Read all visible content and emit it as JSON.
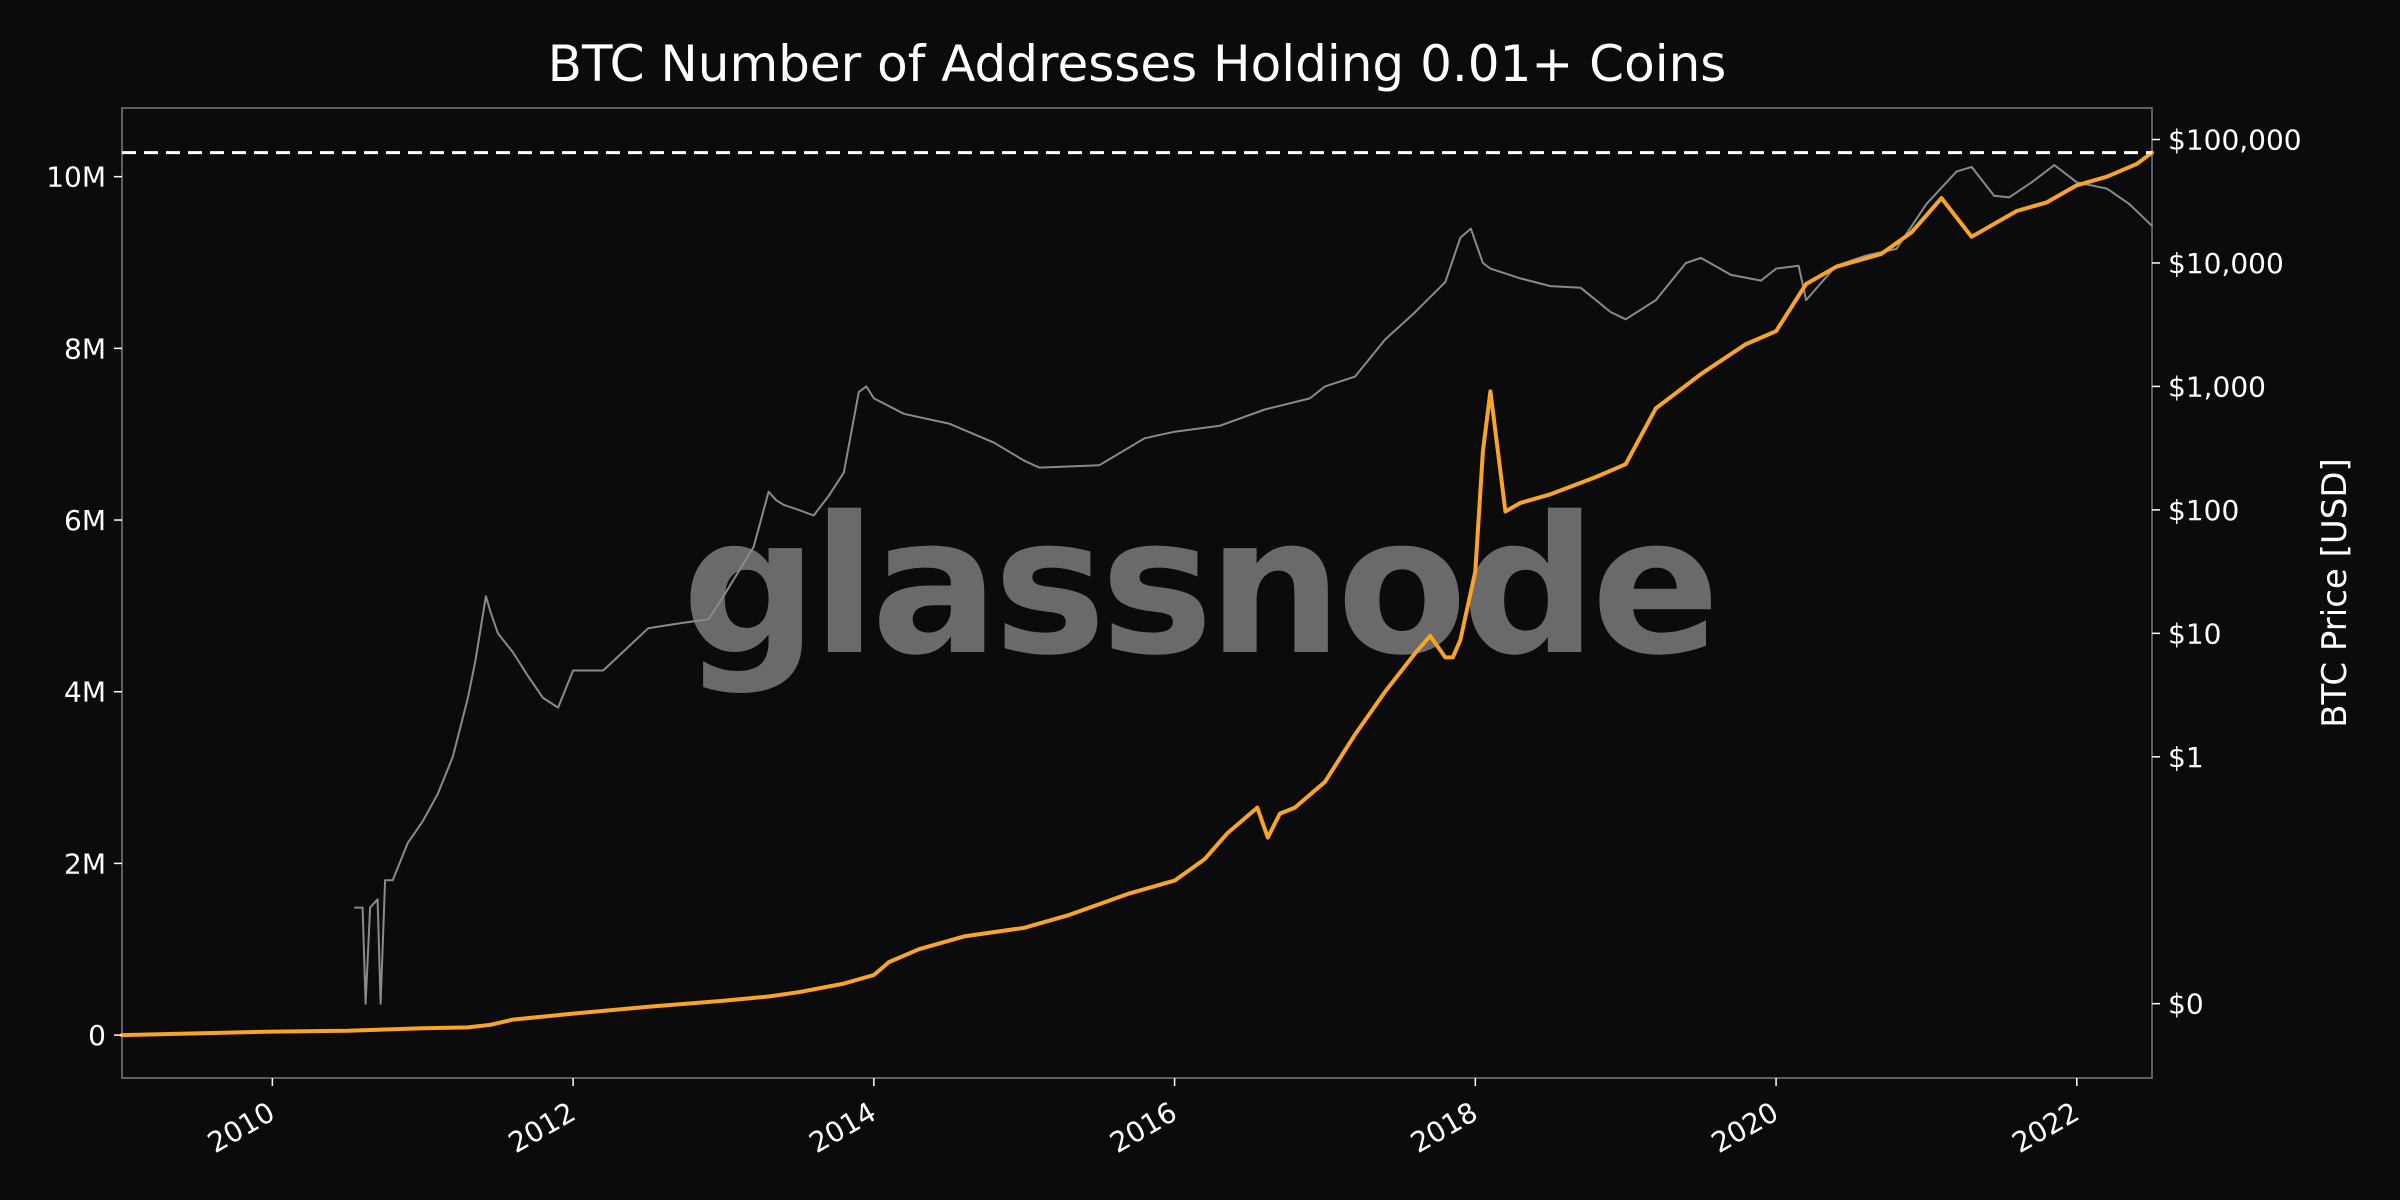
{
  "chart_data": {
    "type": "line",
    "title": "BTC Number of Addresses Holding 0.01+ Coins",
    "watermark": "glassnode",
    "xlabel": "",
    "ylabel_left": "",
    "ylabel_right": "BTC Price [USD]",
    "x_range": [
      2009.0,
      2022.5
    ],
    "x_ticks": [
      2010,
      2012,
      2014,
      2016,
      2018,
      2020,
      2022
    ],
    "x_tick_labels": [
      "2010",
      "2012",
      "2014",
      "2016",
      "2018",
      "2020",
      "2022"
    ],
    "y_left_range": [
      -500000,
      10800000
    ],
    "y_left_ticks": [
      0,
      2000000,
      4000000,
      6000000,
      8000000,
      10000000
    ],
    "y_left_tick_labels": [
      "0",
      "2M",
      "4M",
      "6M",
      "8M",
      "10M"
    ],
    "y_right_scale": "log",
    "y_right_range": [
      0.0025,
      180000
    ],
    "y_right_ticks": [
      0.01,
      1,
      10,
      100,
      1000,
      10000,
      100000
    ],
    "y_right_tick_labels": [
      "$0",
      "$1",
      "$10",
      "$100",
      "$1,000",
      "$10,000",
      "$100,000"
    ],
    "reference_line": {
      "axis": "left",
      "value": 10280000,
      "style": "dashed",
      "color": "#ffffff"
    },
    "grid": false,
    "series": [
      {
        "axis": "left",
        "color": "#f7a428",
        "x": [
          2009.0,
          2010.0,
          2010.5,
          2011.0,
          2011.3,
          2011.45,
          2011.6,
          2012.0,
          2012.5,
          2013.0,
          2013.3,
          2013.5,
          2013.8,
          2014.0,
          2014.1,
          2014.3,
          2014.6,
          2015.0,
          2015.3,
          2015.7,
          2016.0,
          2016.2,
          2016.35,
          2016.45,
          2016.55,
          2016.62,
          2016.7,
          2016.8,
          2017.0,
          2017.2,
          2017.4,
          2017.6,
          2017.7,
          2017.8,
          2017.85,
          2017.9,
          2018.0,
          2018.05,
          2018.1,
          2018.2,
          2018.3,
          2018.5,
          2018.8,
          2019.0,
          2019.2,
          2019.5,
          2019.8,
          2020.0,
          2020.2,
          2020.4,
          2020.7,
          2020.9,
          2021.1,
          2021.3,
          2021.5,
          2021.6,
          2021.8,
          2022.0,
          2022.2,
          2022.4,
          2022.5
        ],
        "y": [
          0,
          40000,
          50000,
          80000,
          90000,
          120000,
          180000,
          250000,
          330000,
          400000,
          450000,
          500000,
          600000,
          700000,
          850000,
          1000000,
          1150000,
          1250000,
          1400000,
          1650000,
          1800000,
          2050000,
          2350000,
          2500000,
          2650000,
          2300000,
          2580000,
          2650000,
          2950000,
          3500000,
          4000000,
          4450000,
          4650000,
          4400000,
          4400000,
          4600000,
          5400000,
          6800000,
          7500000,
          6100000,
          6200000,
          6300000,
          6500000,
          6650000,
          7300000,
          7700000,
          8050000,
          8200000,
          8750000,
          8950000,
          9100000,
          9350000,
          9750000,
          9300000,
          9500000,
          9600000,
          9700000,
          9900000,
          10000000,
          10150000,
          10280000
        ]
      },
      {
        "axis": "right",
        "color": "#8a8a8a",
        "x": [
          2010.55,
          2010.6,
          2010.62,
          2010.65,
          2010.7,
          2010.72,
          2010.75,
          2010.8,
          2010.9,
          2011.0,
          2011.1,
          2011.2,
          2011.3,
          2011.35,
          2011.42,
          2011.45,
          2011.5,
          2011.6,
          2011.7,
          2011.8,
          2011.9,
          2012.0,
          2012.2,
          2012.5,
          2012.7,
          2012.9,
          2013.0,
          2013.2,
          2013.3,
          2013.35,
          2013.4,
          2013.5,
          2013.6,
          2013.7,
          2013.8,
          2013.9,
          2013.95,
          2014.0,
          2014.2,
          2014.5,
          2014.8,
          2015.0,
          2015.1,
          2015.5,
          2015.8,
          2016.0,
          2016.3,
          2016.6,
          2016.9,
          2017.0,
          2017.2,
          2017.4,
          2017.6,
          2017.8,
          2017.9,
          2017.97,
          2018.05,
          2018.1,
          2018.3,
          2018.5,
          2018.7,
          2018.9,
          2019.0,
          2019.2,
          2019.4,
          2019.5,
          2019.7,
          2019.9,
          2020.0,
          2020.15,
          2020.2,
          2020.4,
          2020.6,
          2020.8,
          2021.0,
          2021.2,
          2021.3,
          2021.45,
          2021.55,
          2021.7,
          2021.85,
          2022.0,
          2022.2,
          2022.35,
          2022.5
        ],
        "y": [
          0.06,
          0.06,
          0.01,
          0.06,
          0.07,
          0.01,
          0.1,
          0.1,
          0.2,
          0.3,
          0.5,
          1.0,
          3.0,
          6.0,
          20.0,
          15.0,
          10.0,
          7.0,
          4.5,
          3.0,
          2.5,
          5.0,
          5.0,
          11.0,
          12.0,
          13.0,
          20.0,
          50.0,
          140.0,
          120.0,
          110.0,
          100.0,
          90.0,
          130.0,
          200.0,
          900.0,
          1000.0,
          800.0,
          600.0,
          500.0,
          350.0,
          250.0,
          220.0,
          230.0,
          380.0,
          430.0,
          480.0,
          650.0,
          800.0,
          1000.0,
          1200.0,
          2400.0,
          4000.0,
          7000.0,
          16000.0,
          19000.0,
          10000.0,
          9000.0,
          7500.0,
          6500.0,
          6300.0,
          4000.0,
          3500.0,
          5000.0,
          10000.0,
          11000.0,
          8000.0,
          7200.0,
          9000.0,
          9500.0,
          5000.0,
          9500.0,
          11500.0,
          13000.0,
          30000.0,
          55000.0,
          60000.0,
          35000.0,
          34000.0,
          45000.0,
          62000.0,
          45000.0,
          40000.0,
          30000.0,
          20000.0
        ]
      }
    ]
  }
}
